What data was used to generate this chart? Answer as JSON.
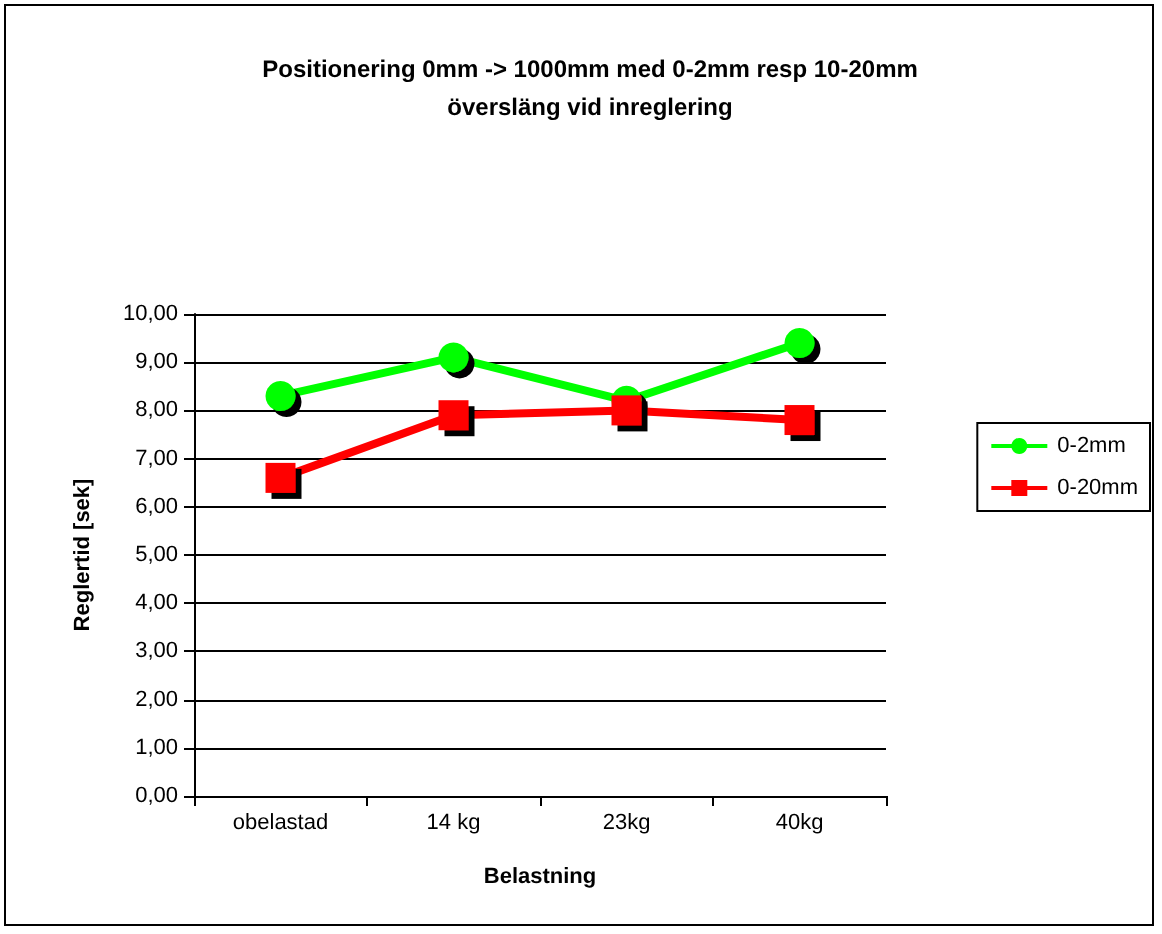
{
  "chart_data": {
    "type": "line",
    "title": "Positionering 0mm -> 1000mm med 0-2mm resp 10-20mm\növersläng vid inreglering",
    "xlabel": "Belastning",
    "ylabel": "Reglertid [sek]",
    "categories": [
      "obelastad",
      "14 kg",
      "23kg",
      "40kg"
    ],
    "series": [
      {
        "name": "0-2mm",
        "color": "#00ff00",
        "marker": "circle",
        "values": [
          8.3,
          9.1,
          8.2,
          9.4
        ]
      },
      {
        "name": "0-20mm",
        "color": "#ff0000",
        "marker": "square",
        "values": [
          6.6,
          7.9,
          8.0,
          7.8
        ]
      }
    ],
    "ylim": [
      0,
      10
    ],
    "yticks": [
      {
        "value": 0,
        "label": "0,00"
      },
      {
        "value": 1,
        "label": "1,00"
      },
      {
        "value": 2,
        "label": "2,00"
      },
      {
        "value": 3,
        "label": "3,00"
      },
      {
        "value": 4,
        "label": "4,00"
      },
      {
        "value": 5,
        "label": "5,00"
      },
      {
        "value": 6,
        "label": "6,00"
      },
      {
        "value": 7,
        "label": "7,00"
      },
      {
        "value": 8,
        "label": "8,00"
      },
      {
        "value": 9,
        "label": "9,00"
      },
      {
        "value": 10,
        "label": "10,00"
      }
    ],
    "grid": "y",
    "legend": "right"
  }
}
